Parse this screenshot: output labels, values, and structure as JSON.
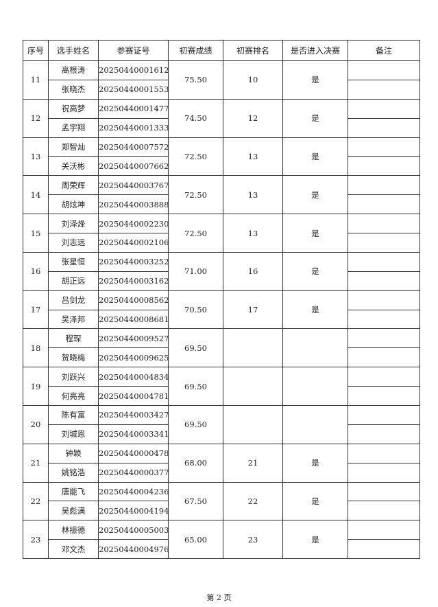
{
  "headers": [
    "序号",
    "选手姓名",
    "参赛证号",
    "初赛成绩",
    "初赛排名",
    "是否进入决赛",
    "备注"
  ],
  "groups": [
    {
      "no": "11",
      "members": [
        [
          "高根涛",
          "20250440001612"
        ],
        [
          "张晓杰",
          "20250440001553"
        ]
      ],
      "score": "75.50",
      "rank": "10",
      "final": "是"
    },
    {
      "no": "12",
      "members": [
        [
          "祝高梦",
          "20250440001477"
        ],
        [
          "孟宇翔",
          "20250440001333"
        ]
      ],
      "score": "74.50",
      "rank": "12",
      "final": "是"
    },
    {
      "no": "13",
      "members": [
        [
          "郑智灿",
          "20250440007572"
        ],
        [
          "关沃彬",
          "20250440007662"
        ]
      ],
      "score": "72.50",
      "rank": "13",
      "final": "是"
    },
    {
      "no": "14",
      "members": [
        [
          "周荣辉",
          "20250440003767"
        ],
        [
          "胡炫坤",
          "20250440003888"
        ]
      ],
      "score": "72.50",
      "rank": "13",
      "final": "是"
    },
    {
      "no": "15",
      "members": [
        [
          "刘泽烽",
          "20250440002230"
        ],
        [
          "刘志远",
          "20250440002106"
        ]
      ],
      "score": "72.50",
      "rank": "13",
      "final": "是"
    },
    {
      "no": "16",
      "members": [
        [
          "张星恒",
          "20250440003252"
        ],
        [
          "胡正远",
          "20250440003162"
        ]
      ],
      "score": "71.00",
      "rank": "16",
      "final": "是"
    },
    {
      "no": "17",
      "members": [
        [
          "吕剑龙",
          "20250440008562"
        ],
        [
          "吴泽邦",
          "20250440008681"
        ]
      ],
      "score": "70.50",
      "rank": "17",
      "final": "是"
    },
    {
      "no": "18",
      "members": [
        [
          "程琛",
          "20250440009527"
        ],
        [
          "贺晓梅",
          "20250440009625"
        ]
      ],
      "score": "69.50",
      "rank": "",
      "final": ""
    },
    {
      "no": "19",
      "members": [
        [
          "刘跃兴",
          "20250440004834"
        ],
        [
          "何亮亮",
          "20250440004781"
        ]
      ],
      "score": "69.50",
      "rank": "",
      "final": ""
    },
    {
      "no": "20",
      "members": [
        [
          "陈有富",
          "20250440003427"
        ],
        [
          "刘城恩",
          "20250440003341"
        ]
      ],
      "score": "69.50",
      "rank": "",
      "final": ""
    },
    {
      "no": "21",
      "members": [
        [
          "钟颖",
          "20250440000478"
        ],
        [
          "姚铭浩",
          "20250440000377"
        ]
      ],
      "score": "68.00",
      "rank": "21",
      "final": "是"
    },
    {
      "no": "22",
      "members": [
        [
          "唐能飞",
          "20250440004236"
        ],
        [
          "吴彪满",
          "20250440004194"
        ]
      ],
      "score": "67.50",
      "rank": "22",
      "final": "是"
    },
    {
      "no": "23",
      "members": [
        [
          "林振德",
          "20250440005003"
        ],
        [
          "邓文杰",
          "20250440004976"
        ]
      ],
      "score": "65.00",
      "rank": "23",
      "final": "是"
    }
  ],
  "footer": "第 2 页"
}
